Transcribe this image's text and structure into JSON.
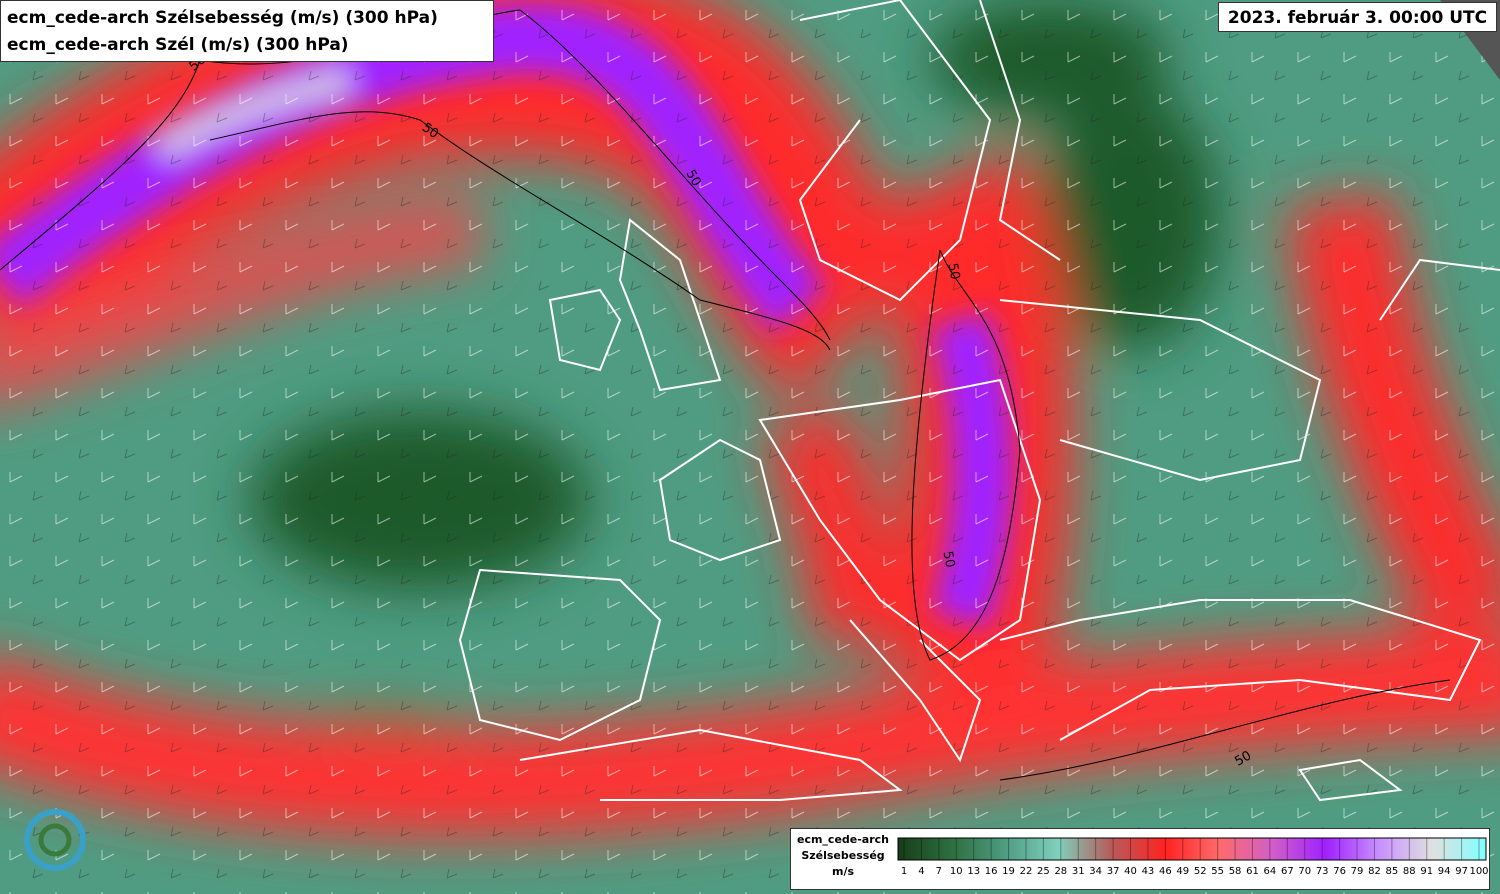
{
  "header": {
    "title_lines": [
      "ecm_cede-arch Szélsebesség (m/s) (300 hPa)",
      "ecm_cede-arch Szél (m/s) (300 hPa)"
    ],
    "valid_time": "2023. február 3. 00:00 UTC"
  },
  "map": {
    "contour_labels": [
      "50",
      "50",
      "50",
      "50",
      "50",
      "50"
    ]
  },
  "legend": {
    "title_lines": [
      "ecm_cede-arch",
      "Szélsebesség",
      "m/s"
    ],
    "ticks": [
      1,
      4,
      7,
      10,
      13,
      16,
      19,
      22,
      25,
      28,
      31,
      34,
      37,
      40,
      43,
      46,
      49,
      52,
      55,
      58,
      61,
      64,
      67,
      70,
      73,
      76,
      79,
      82,
      85,
      88,
      91,
      94,
      97,
      100
    ],
    "colors": [
      "#163d18",
      "#2e6e40",
      "#4f9c82",
      "#7fd0bc",
      "#b85a5a",
      "#ff2222",
      "#ff6a6a",
      "#d060c8",
      "#a020ff",
      "#c890ff",
      "#e0e0e0",
      "#80ffff"
    ]
  }
}
